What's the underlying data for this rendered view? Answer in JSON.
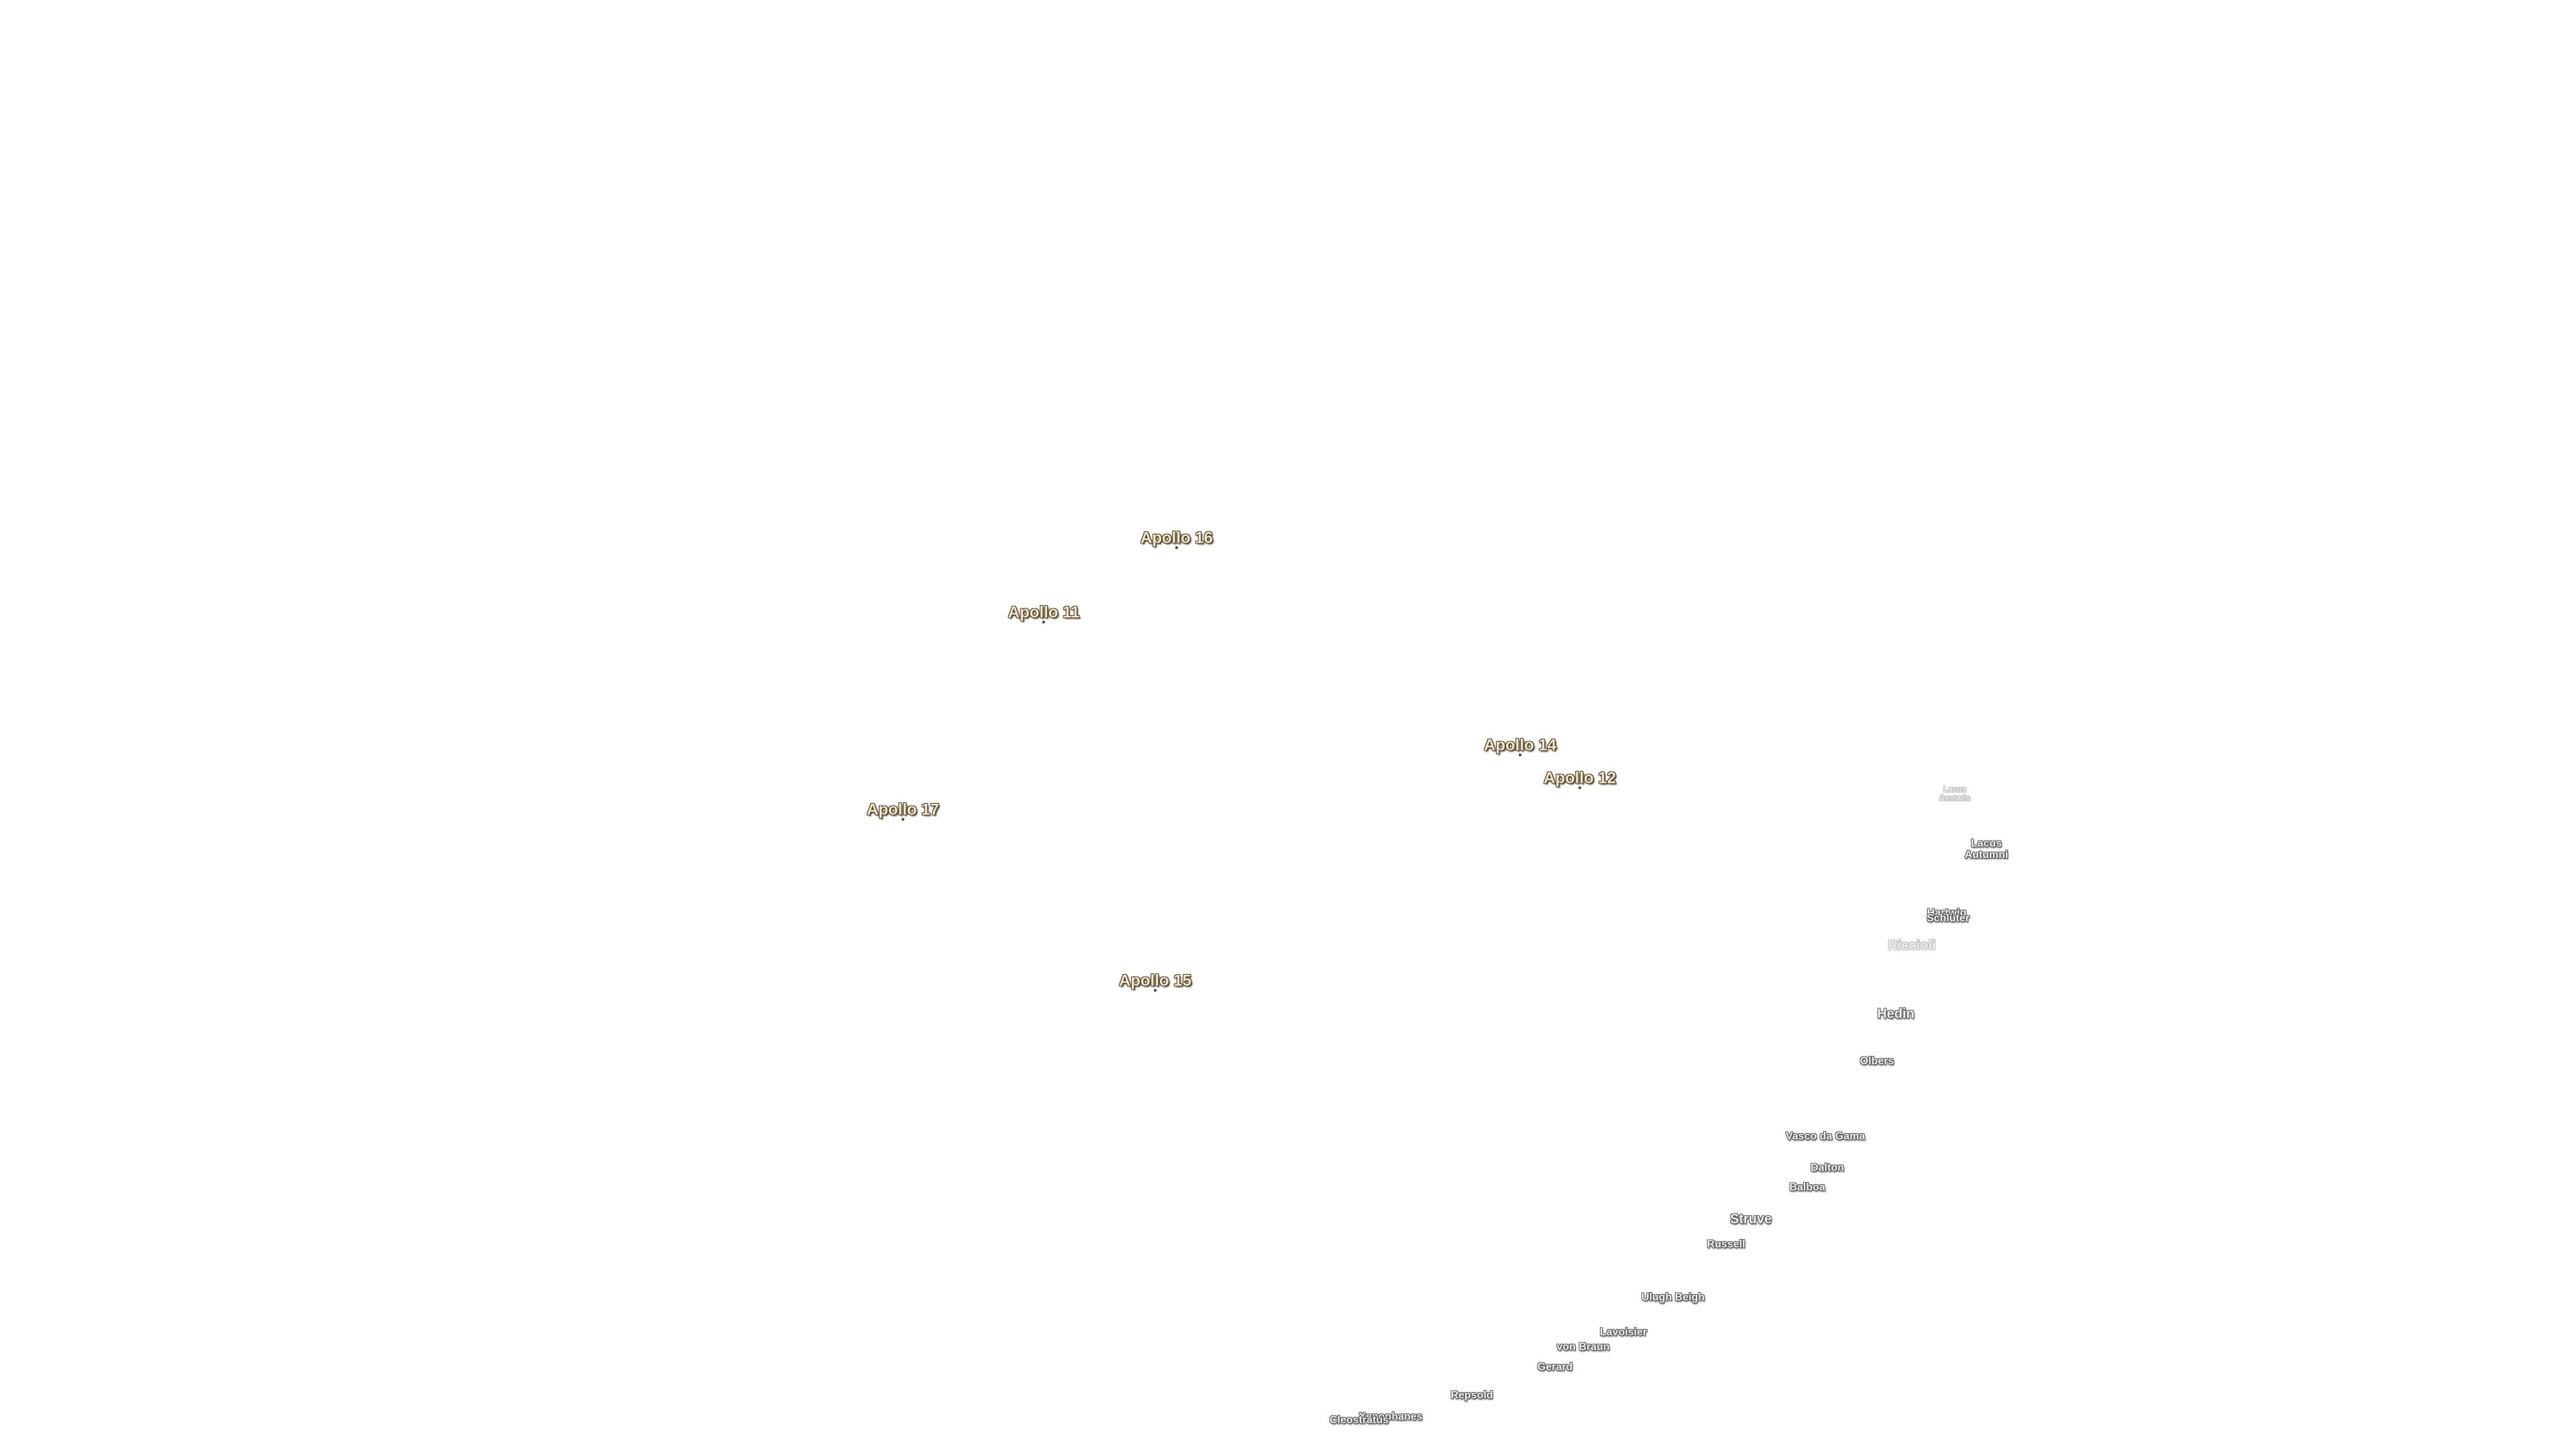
{
  "landing_sites": [
    "Apollo 16",
    "Apollo 11",
    "Apollo 14",
    "Apollo 12",
    "Apollo 17",
    "Apollo 15"
  ],
  "features": [
    "Lacus Aestatis",
    "Lacus Autumni",
    "Hartwig",
    "Schlüter",
    "Riccioli",
    "Hedin",
    "Olbers",
    "Vasco da Gama",
    "Dalton",
    "Balboa",
    "Struve",
    "Russell",
    "Ulugh Beigh",
    "Lavoisier",
    "von Braun",
    "Gerard",
    "Repsold",
    "Xenophanes",
    "Cleostratus"
  ]
}
